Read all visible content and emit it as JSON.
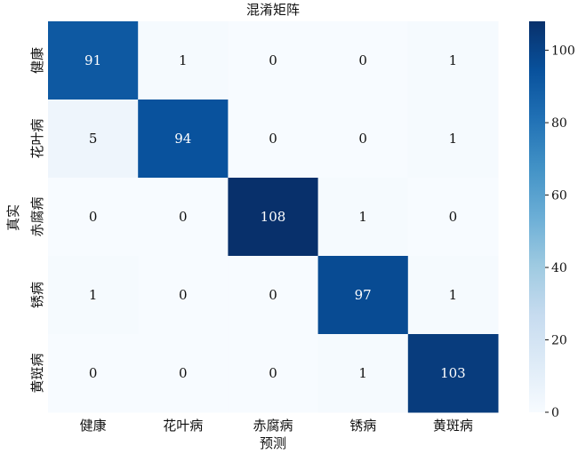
{
  "chart_data": {
    "type": "heatmap",
    "title": "混淆矩阵",
    "xlabel": "预测",
    "ylabel": "真实",
    "x_categories": [
      "健康",
      "花叶病",
      "赤腐病",
      "锈病",
      "黄斑病"
    ],
    "y_categories": [
      "健康",
      "花叶病",
      "赤腐病",
      "锈病",
      "黄斑病"
    ],
    "values": [
      [
        91,
        1,
        0,
        0,
        1
      ],
      [
        5,
        94,
        0,
        0,
        1
      ],
      [
        0,
        0,
        108,
        1,
        0
      ],
      [
        1,
        0,
        0,
        97,
        1
      ],
      [
        0,
        0,
        0,
        1,
        103
      ]
    ],
    "colorbar": {
      "range": [
        0,
        108
      ],
      "ticks": [
        0,
        20,
        40,
        60,
        80,
        100
      ],
      "colormap": "Blues"
    },
    "grid": false
  }
}
